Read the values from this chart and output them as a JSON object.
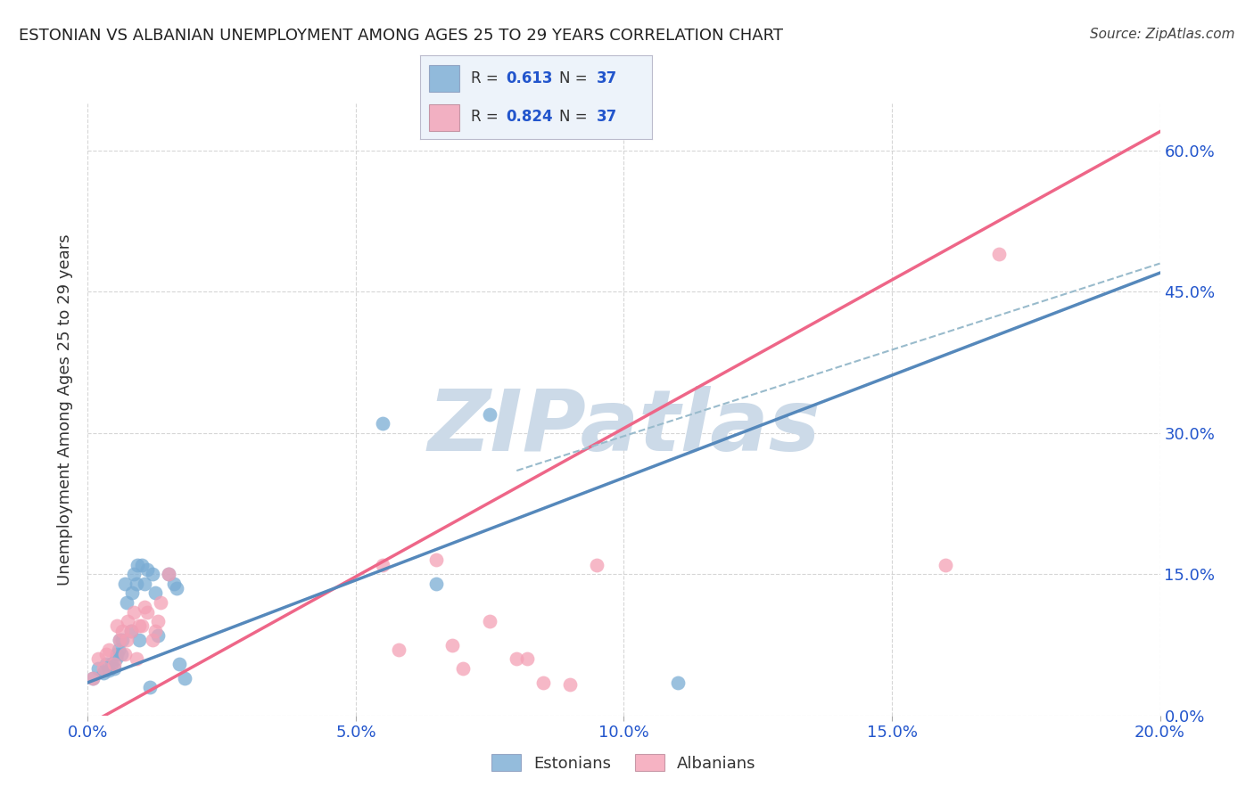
{
  "title": "ESTONIAN VS ALBANIAN UNEMPLOYMENT AMONG AGES 25 TO 29 YEARS CORRELATION CHART",
  "source": "Source: ZipAtlas.com",
  "ylabel": "Unemployment Among Ages 25 to 29 years",
  "xlabel_ticks": [
    "0.0%",
    "5.0%",
    "10.0%",
    "15.0%",
    "20.0%"
  ],
  "xlabel_vals": [
    0.0,
    5.0,
    10.0,
    15.0,
    20.0
  ],
  "ylabel_ticks": [
    "0.0%",
    "15.0%",
    "30.0%",
    "45.0%",
    "60.0%"
  ],
  "ylabel_vals": [
    0.0,
    15.0,
    30.0,
    45.0,
    60.0
  ],
  "xlim": [
    0.0,
    20.0
  ],
  "ylim": [
    0.0,
    65.0
  ],
  "R_estonian": "0.613",
  "N_estonian": "37",
  "R_albanian": "0.824",
  "N_albanian": "37",
  "estonian_color": "#7aacd4",
  "albanian_color": "#f4a0b5",
  "estonian_line_color": "#5588bb",
  "albanian_line_color": "#ee6688",
  "dashed_line_color": "#99bbcc",
  "watermark_color": "#ccdae8",
  "watermark_text": "ZIPatlas",
  "title_fontsize": 13,
  "source_fontsize": 11,
  "tick_fontsize": 13,
  "ylabel_fontsize": 13,
  "legend_text_color": "#333333",
  "legend_val_color": "#2255cc",
  "tick_color": "#2255cc",
  "estonian_x": [
    0.1,
    0.2,
    0.3,
    0.35,
    0.4,
    0.45,
    0.5,
    0.52,
    0.55,
    0.58,
    0.6,
    0.62,
    0.65,
    0.7,
    0.72,
    0.8,
    0.82,
    0.85,
    0.9,
    0.92,
    0.95,
    1.0,
    1.05,
    1.1,
    1.15,
    1.2,
    1.25,
    1.3,
    1.5,
    1.6,
    1.65,
    1.7,
    1.8,
    5.5,
    6.5,
    7.5,
    11.0
  ],
  "estonian_y": [
    4.0,
    5.0,
    4.5,
    5.5,
    4.8,
    5.5,
    5.0,
    6.0,
    6.5,
    7.0,
    8.0,
    6.5,
    8.0,
    14.0,
    12.0,
    9.0,
    13.0,
    15.0,
    14.0,
    16.0,
    8.0,
    16.0,
    14.0,
    15.5,
    3.0,
    15.0,
    13.0,
    8.5,
    15.0,
    14.0,
    13.5,
    5.5,
    4.0,
    31.0,
    14.0,
    32.0,
    3.5
  ],
  "albanian_x": [
    0.1,
    0.2,
    0.3,
    0.35,
    0.4,
    0.5,
    0.55,
    0.6,
    0.65,
    0.7,
    0.72,
    0.75,
    0.8,
    0.85,
    0.9,
    0.95,
    1.0,
    1.05,
    1.1,
    1.2,
    1.25,
    1.3,
    1.35,
    1.5,
    5.5,
    5.8,
    6.5,
    6.8,
    7.0,
    7.5,
    8.0,
    8.2,
    8.5,
    9.0,
    9.5,
    16.0,
    17.0
  ],
  "albanian_y": [
    4.0,
    6.0,
    5.0,
    6.5,
    7.0,
    5.5,
    9.5,
    8.0,
    9.0,
    6.5,
    8.0,
    10.0,
    9.0,
    11.0,
    6.0,
    9.5,
    9.5,
    11.5,
    11.0,
    8.0,
    9.0,
    10.0,
    12.0,
    15.0,
    16.0,
    7.0,
    16.5,
    7.5,
    5.0,
    10.0,
    6.0,
    6.0,
    3.5,
    3.3,
    16.0,
    16.0,
    49.0
  ],
  "est_line_x0": 0.0,
  "est_line_y0": 3.5,
  "est_line_x1": 20.0,
  "est_line_y1": 47.0,
  "alb_line_x0": 0.0,
  "alb_line_y0": -1.0,
  "alb_line_x1": 20.0,
  "alb_line_y1": 62.0,
  "dash_line_x0": 8.0,
  "dash_line_y0": 26.0,
  "dash_line_x1": 20.0,
  "dash_line_y1": 48.0
}
